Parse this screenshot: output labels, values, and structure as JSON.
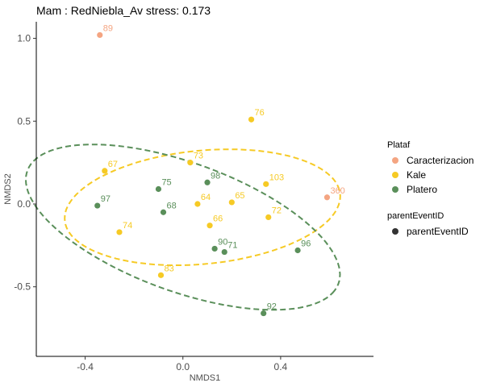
{
  "chart_data": {
    "type": "scatter",
    "title": "Mam : RedNiebla_Av stress: 0.173",
    "xlabel": "NMDS1",
    "ylabel": "NMDS2",
    "xlim": [
      -0.6,
      0.78
    ],
    "ylim": [
      -0.92,
      1.1
    ],
    "x_ticks": [
      -0.4,
      0.0,
      0.4
    ],
    "x_tick_labels": [
      "-0.4",
      "0.0",
      "0.4"
    ],
    "y_ticks": [
      -0.5,
      0.0,
      0.5,
      1.0
    ],
    "y_tick_labels": [
      "-0.5",
      "0.0",
      "0.5",
      "1.0"
    ],
    "grid": false,
    "legend_position": "right",
    "legends": [
      {
        "title": "Plataf",
        "entries": [
          {
            "label": "Caracterizacion",
            "color": "#f4a582"
          },
          {
            "label": "Kale",
            "color": "#f6ca25"
          },
          {
            "label": "Platero",
            "color": "#5a8f5a"
          }
        ]
      },
      {
        "title": "parentEventID",
        "entries": [
          {
            "label": "parentEventID",
            "color": "#333333"
          }
        ]
      }
    ],
    "series": [
      {
        "name": "Caracterizacion",
        "color": "#f4a582",
        "points": [
          {
            "label": "89",
            "x": -0.34,
            "y": 1.02
          },
          {
            "label": "360",
            "x": 0.59,
            "y": 0.04
          }
        ]
      },
      {
        "name": "Kale",
        "color": "#f6ca25",
        "points": [
          {
            "label": "76",
            "x": 0.28,
            "y": 0.51
          },
          {
            "label": "73",
            "x": 0.03,
            "y": 0.25
          },
          {
            "label": "67",
            "x": -0.32,
            "y": 0.2
          },
          {
            "label": "103",
            "x": 0.34,
            "y": 0.12
          },
          {
            "label": "64",
            "x": 0.06,
            "y": 0.0
          },
          {
            "label": "65",
            "x": 0.2,
            "y": 0.01
          },
          {
            "label": "72",
            "x": 0.35,
            "y": -0.08
          },
          {
            "label": "74",
            "x": -0.26,
            "y": -0.17
          },
          {
            "label": "66",
            "x": 0.11,
            "y": -0.13
          },
          {
            "label": "83",
            "x": -0.09,
            "y": -0.43
          }
        ]
      },
      {
        "name": "Platero",
        "color": "#5a8f5a",
        "points": [
          {
            "label": "98",
            "x": 0.1,
            "y": 0.13
          },
          {
            "label": "75",
            "x": -0.1,
            "y": 0.09
          },
          {
            "label": "97",
            "x": -0.35,
            "y": -0.01
          },
          {
            "label": "68",
            "x": -0.08,
            "y": -0.05
          },
          {
            "label": "90",
            "x": 0.13,
            "y": -0.27
          },
          {
            "label": "71",
            "x": 0.17,
            "y": -0.29
          },
          {
            "label": "96",
            "x": 0.47,
            "y": -0.28
          },
          {
            "label": "92",
            "x": 0.33,
            "y": -0.66
          }
        ]
      }
    ],
    "ellipses": [
      {
        "group": "Kale",
        "color": "#f6ca25",
        "center": [
          0.08,
          -0.02
        ],
        "rx": 0.57,
        "ry": 0.34,
        "angle_deg": 10.5
      },
      {
        "group": "Platero",
        "color": "#5a8f5a",
        "center": [
          0.0,
          -0.14
        ],
        "rx": 0.73,
        "ry": 0.36,
        "angle_deg": -33
      }
    ]
  }
}
